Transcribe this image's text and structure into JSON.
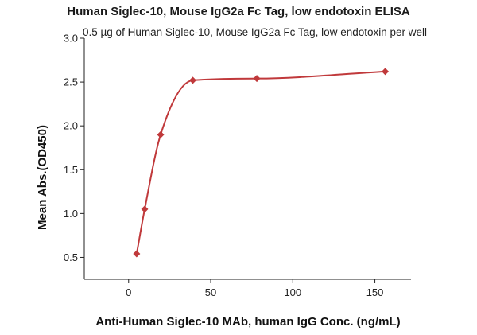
{
  "chart_data": {
    "type": "scatter",
    "title": "Human Siglec-10, Mouse IgG2a Fc Tag, low endotoxin ELISA",
    "subtitle": "0.5 µg of Human Siglec-10, Mouse IgG2a Fc Tag, low endotoxin per well",
    "xlabel": "Anti-Human Siglec-10 MAb, human IgG Conc. (ng/mL)",
    "ylabel": "Mean Abs.(OD450)",
    "xlim": [
      -27,
      172
    ],
    "ylim": [
      0.25,
      3.0
    ],
    "xticks": [
      0,
      50,
      100,
      150
    ],
    "yticks": [
      0.5,
      1.0,
      1.5,
      2.0,
      2.5,
      3.0
    ],
    "xtick_labels": [
      "0",
      "50",
      "100",
      "150"
    ],
    "ytick_labels": [
      "0.5",
      "1.0",
      "1.5",
      "2.0",
      "2.5",
      "3.0"
    ],
    "grid": false,
    "color": "#c0393b",
    "series": [
      {
        "marker": "diamond",
        "fit_line": true,
        "x": [
          4.9,
          9.8,
          19.5,
          39.1,
          78.1,
          156.3
        ],
        "y": [
          0.54,
          1.05,
          1.9,
          2.52,
          2.54,
          2.62
        ]
      }
    ]
  }
}
